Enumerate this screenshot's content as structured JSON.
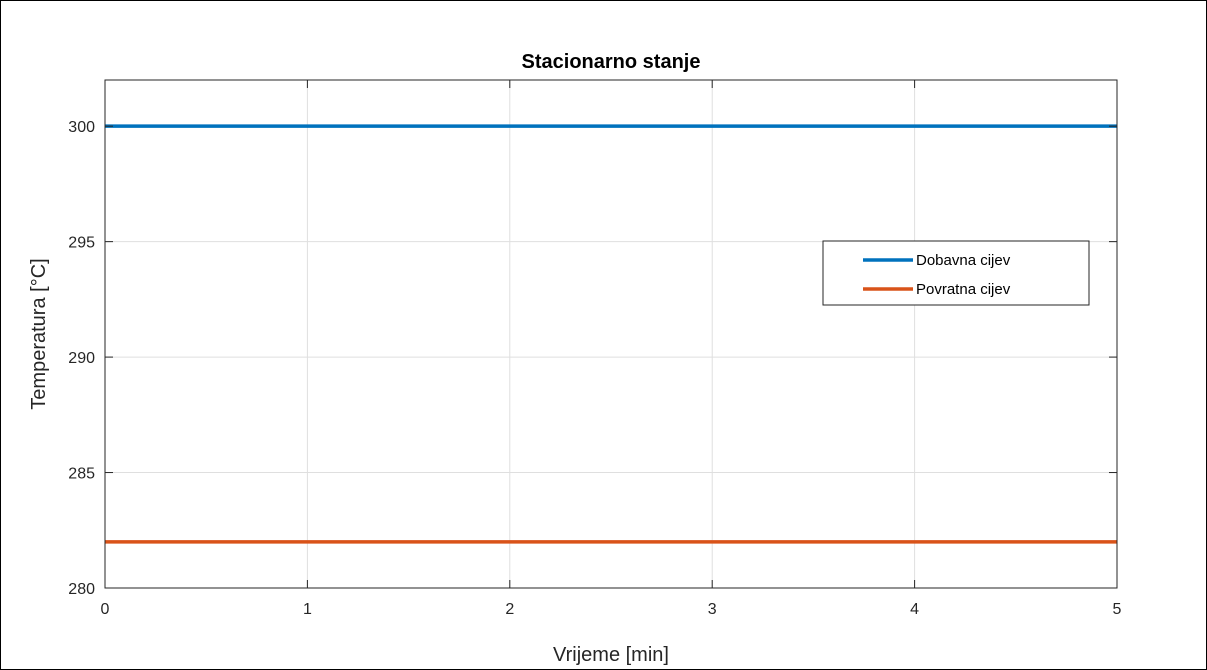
{
  "chart_data": {
    "type": "line",
    "title": "Stacionarno stanje",
    "xlabel": "Vrijeme [min]",
    "ylabel": "Temperatura [°C]",
    "xlim": [
      0,
      5
    ],
    "ylim": [
      280,
      302
    ],
    "xticks": [
      0,
      1,
      2,
      3,
      4,
      5
    ],
    "yticks": [
      280,
      285,
      290,
      295,
      300
    ],
    "grid": true,
    "legend_position": "right",
    "series": [
      {
        "name": "Dobavna cijev",
        "color": "#0072BD",
        "x": [
          0,
          5
        ],
        "y": [
          300,
          300
        ]
      },
      {
        "name": "Povratna cijev",
        "color": "#D95319",
        "x": [
          0,
          5
        ],
        "y": [
          282,
          282
        ]
      }
    ]
  }
}
